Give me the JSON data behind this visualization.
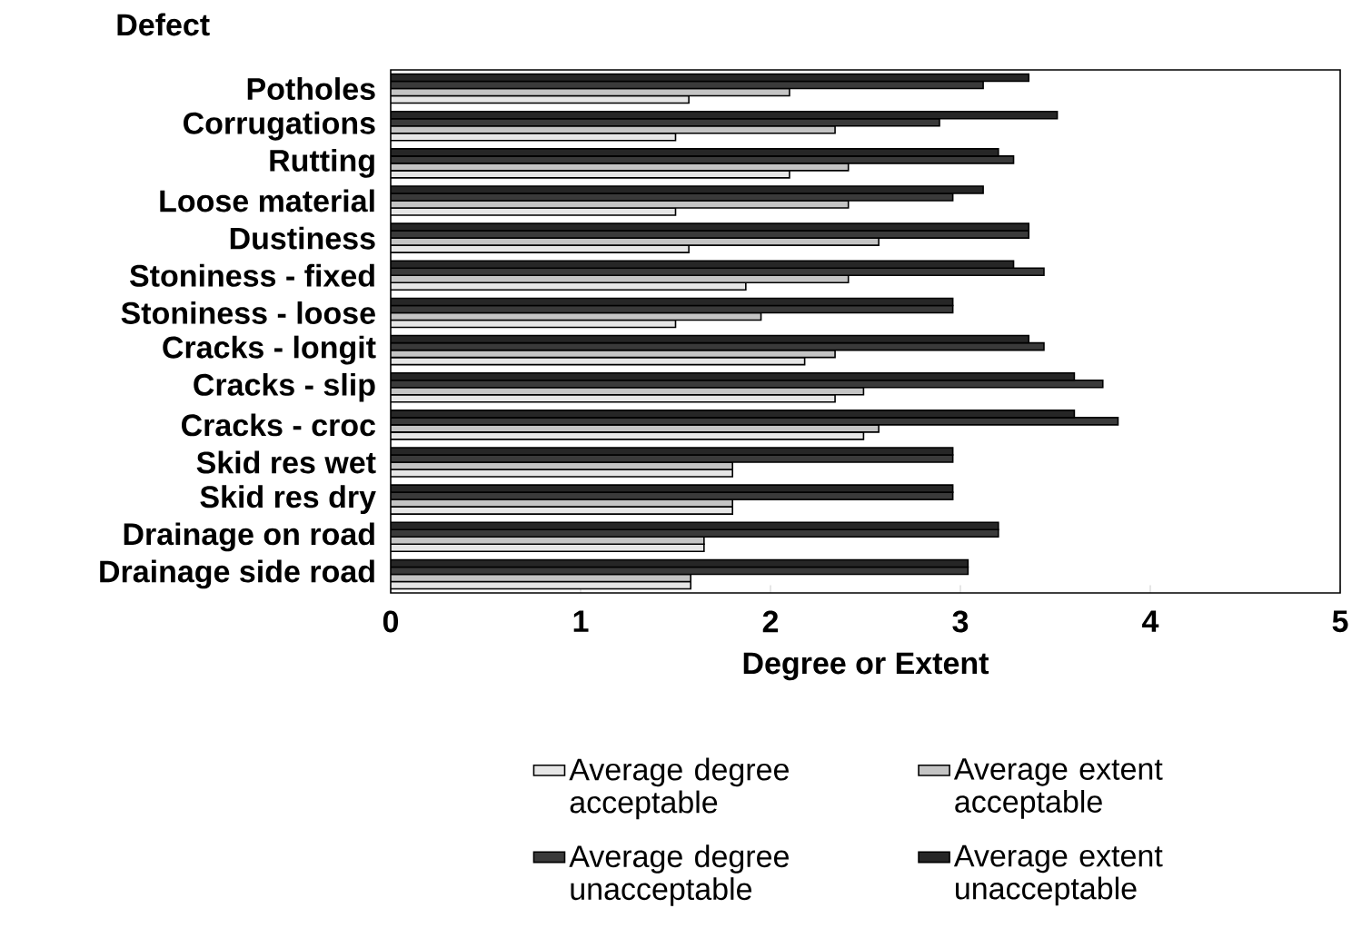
{
  "chart_data": {
    "type": "bar",
    "orientation": "horizontal",
    "ylabel": "Defect",
    "xlabel": "Degree or Extent",
    "categories": [
      "Potholes",
      "Corrugations",
      "Rutting",
      "Loose material",
      "Dustiness",
      "Stoniness - fixed",
      "Stoniness - loose",
      "Cracks - longit",
      "Cracks - slip",
      "Cracks - croc",
      "Skid res wet",
      "Skid res dry",
      "Drainage on road",
      "Drainage side road"
    ],
    "series": [
      {
        "name": "Average degree acceptable",
        "color": "#e6e6e6",
        "values": [
          1.57,
          1.5,
          2.1,
          1.5,
          1.57,
          1.87,
          1.5,
          2.18,
          2.34,
          2.49,
          1.8,
          1.8,
          1.65,
          1.58
        ]
      },
      {
        "name": "Average extent acceptable",
        "color": "#c4c4c4",
        "values": [
          2.1,
          2.34,
          2.41,
          2.41,
          2.57,
          2.41,
          1.95,
          2.34,
          2.49,
          2.57,
          1.8,
          1.8,
          1.65,
          1.58
        ]
      },
      {
        "name": "Average degree unacceptable",
        "color": "#3a3a3a",
        "values": [
          3.12,
          2.89,
          3.28,
          2.96,
          3.36,
          3.44,
          2.96,
          3.44,
          3.75,
          3.83,
          2.96,
          2.96,
          3.2,
          3.04
        ]
      },
      {
        "name": "Average extent unacceptable",
        "color": "#262626",
        "values": [
          3.36,
          3.51,
          3.2,
          3.12,
          3.36,
          3.28,
          2.96,
          3.36,
          3.6,
          3.6,
          2.96,
          2.96,
          3.2,
          3.04
        ]
      }
    ],
    "xlim": [
      0,
      5
    ],
    "xticks": [
      0,
      1,
      2,
      3,
      4,
      5
    ],
    "grid": false,
    "legend": "bottom"
  }
}
